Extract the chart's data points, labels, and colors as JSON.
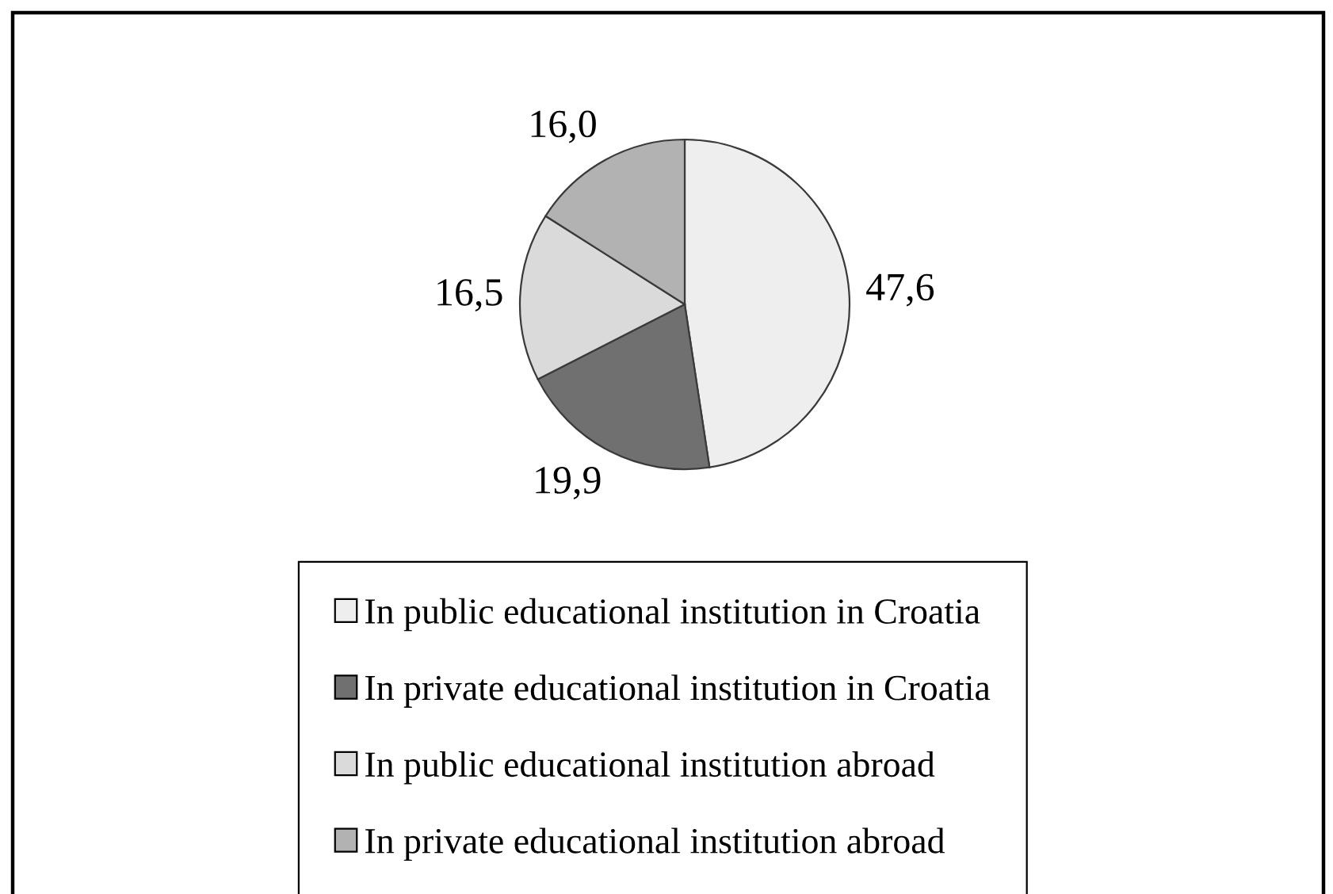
{
  "chart_data": {
    "type": "pie",
    "categories": [
      "In public educational institution in Croatia",
      "In private educational institution in Croatia",
      "In public educational institution abroad",
      "In private educational institution abroad"
    ],
    "values": [
      47.6,
      19.9,
      16.5,
      16.0
    ],
    "colors": [
      "#eeeeee",
      "#707070",
      "#dadada",
      "#b2b2b2"
    ],
    "value_labels": [
      "47,6",
      "19,9",
      "16,5",
      "16,0"
    ],
    "legend": "bottom"
  }
}
